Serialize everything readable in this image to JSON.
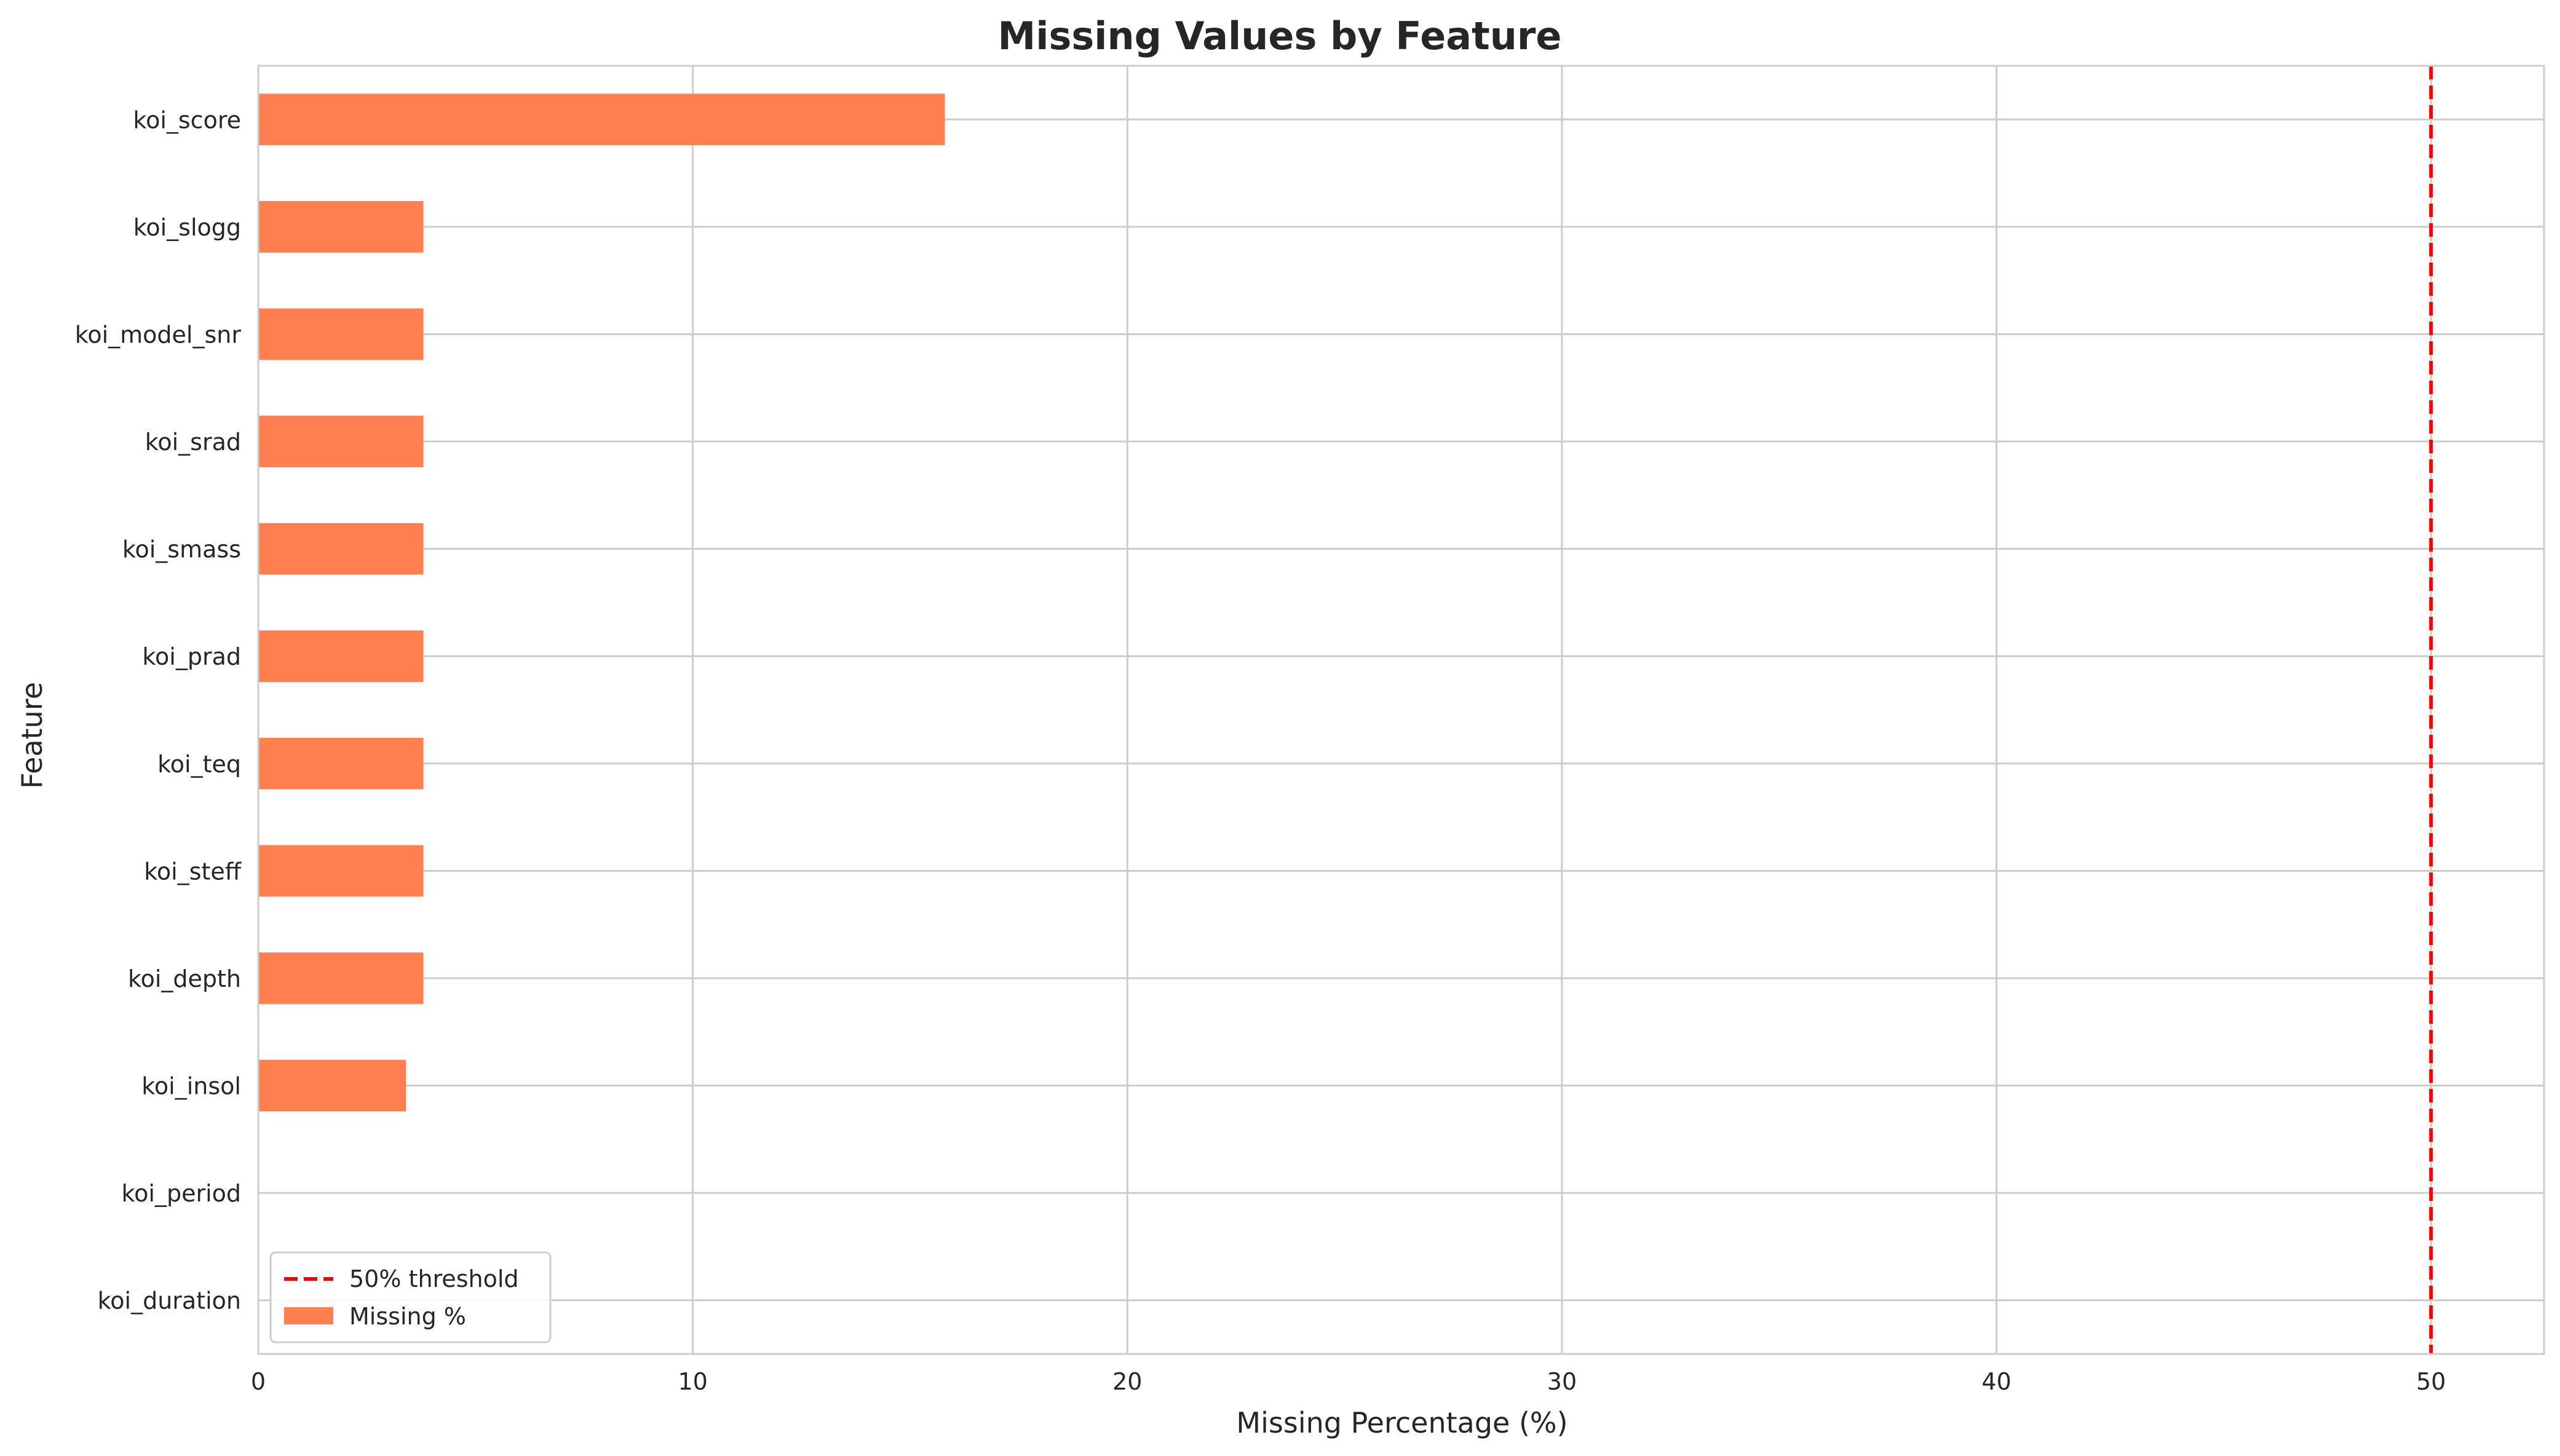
{
  "chart_data": {
    "type": "bar",
    "orientation": "horizontal",
    "title": "Missing Values by Feature",
    "xlabel": "Missing Percentage (%)",
    "ylabel": "Feature",
    "xlim": [
      0,
      52.6
    ],
    "x_ticks": [
      0,
      10,
      20,
      30,
      40,
      50
    ],
    "grid": true,
    "legend_position": "lower-left",
    "categories": [
      "koi_score",
      "koi_slogg",
      "koi_model_snr",
      "koi_srad",
      "koi_smass",
      "koi_prad",
      "koi_teq",
      "koi_steff",
      "koi_depth",
      "koi_insol",
      "koi_period",
      "koi_duration"
    ],
    "series": [
      {
        "name": "Missing %",
        "color": "#ff7f50",
        "values": [
          15.8,
          3.8,
          3.8,
          3.8,
          3.8,
          3.8,
          3.8,
          3.8,
          3.8,
          3.4,
          0.0,
          0.0
        ]
      }
    ],
    "reference_lines": [
      {
        "name": "50% threshold",
        "value": 50,
        "color": "#ff0000",
        "style": "dashed"
      }
    ]
  }
}
